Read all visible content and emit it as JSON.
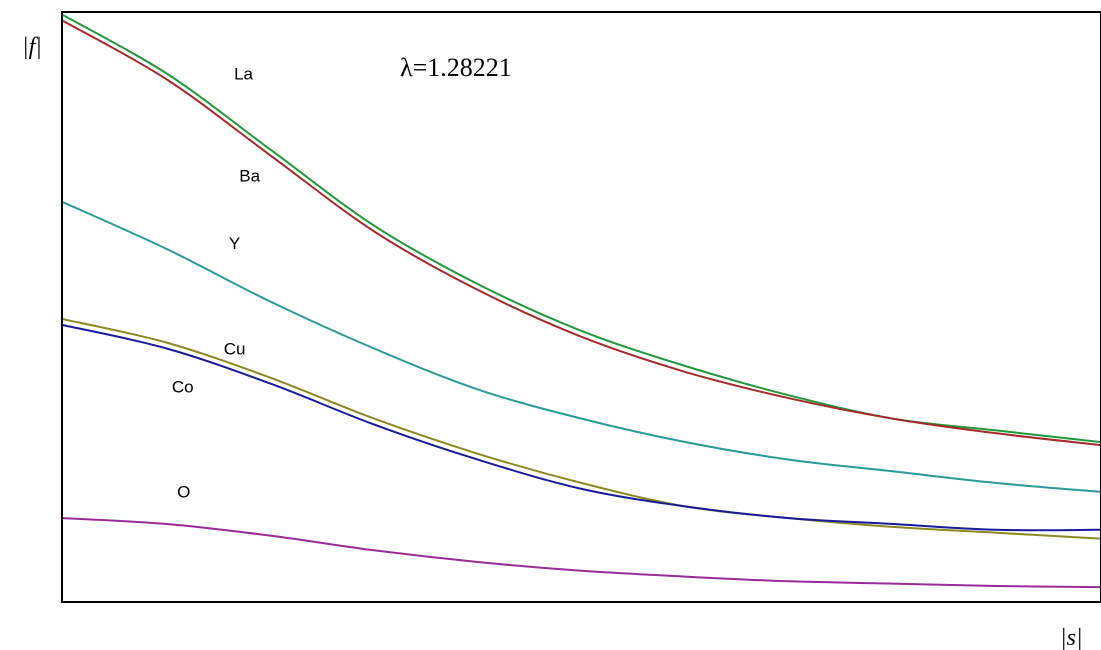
{
  "chart_data": {
    "type": "line",
    "title": "",
    "annotation": "λ=1.28221",
    "ylabel": "|f|",
    "xlabel": "|s|",
    "xlim": [
      0,
      1
    ],
    "ylim": [
      0,
      1
    ],
    "grid": false,
    "x": [
      0.0,
      0.1,
      0.2,
      0.3,
      0.4,
      0.5,
      0.6,
      0.7,
      0.8,
      0.9,
      1.0
    ],
    "series": [
      {
        "name": "La",
        "color": "#1f9a3a",
        "values": [
          1.0,
          0.9,
          0.77,
          0.64,
          0.54,
          0.46,
          0.4,
          0.35,
          0.31,
          0.29,
          0.27
        ]
      },
      {
        "name": "Ba",
        "color": "#a52a2a",
        "values": [
          0.99,
          0.89,
          0.76,
          0.63,
          0.53,
          0.45,
          0.39,
          0.345,
          0.31,
          0.285,
          0.265
        ]
      },
      {
        "name": "Y",
        "color": "#2a9a9a",
        "values": [
          0.68,
          0.6,
          0.51,
          0.43,
          0.36,
          0.31,
          0.27,
          0.24,
          0.22,
          0.2,
          0.185
        ]
      },
      {
        "name": "Cu",
        "color": "#8a8a20",
        "values": [
          0.48,
          0.44,
          0.38,
          0.31,
          0.25,
          0.2,
          0.16,
          0.14,
          0.125,
          0.115,
          0.105
        ]
      },
      {
        "name": "Co",
        "color": "#1a1a9a",
        "values": [
          0.47,
          0.43,
          0.37,
          0.3,
          0.24,
          0.19,
          0.16,
          0.14,
          0.13,
          0.12,
          0.12
        ]
      },
      {
        "name": "O",
        "color": "#9a2a9a",
        "values": [
          0.14,
          0.13,
          0.11,
          0.085,
          0.065,
          0.05,
          0.04,
          0.032,
          0.028,
          0.024,
          0.022
        ]
      }
    ],
    "labels": [
      {
        "text": "La",
        "x": 0.165,
        "y": 0.89
      },
      {
        "text": "Ba",
        "x": 0.17,
        "y": 0.715
      },
      {
        "text": "Y",
        "x": 0.16,
        "y": 0.6
      },
      {
        "text": "Cu",
        "x": 0.155,
        "y": 0.42
      },
      {
        "text": "Co",
        "x": 0.105,
        "y": 0.355
      },
      {
        "text": "O",
        "x": 0.11,
        "y": 0.175
      }
    ]
  }
}
